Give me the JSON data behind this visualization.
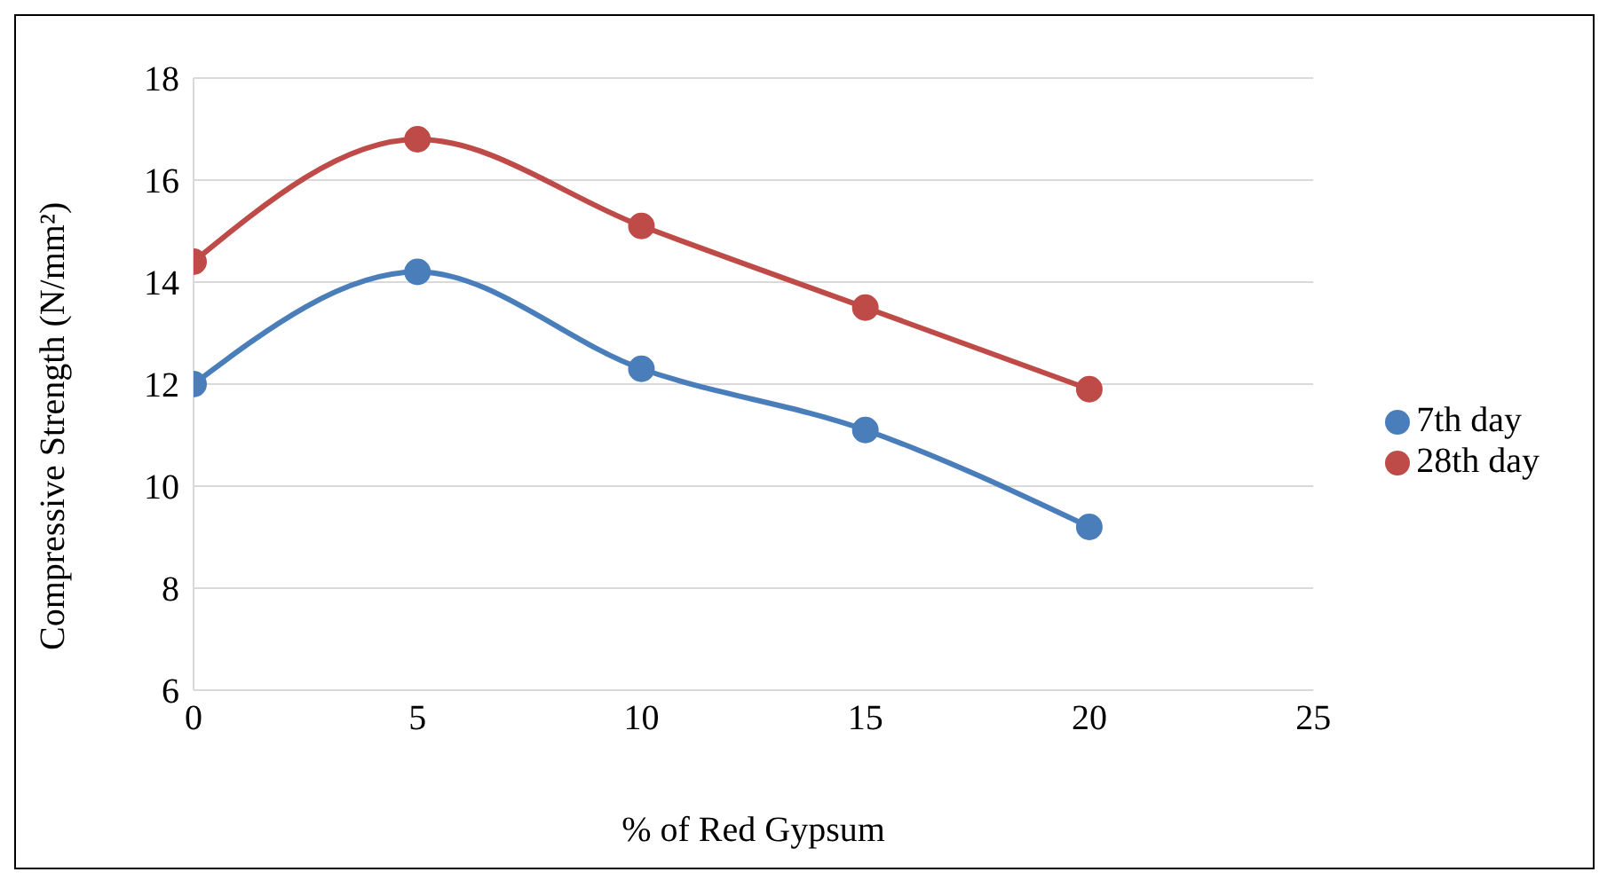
{
  "chart_data": {
    "type": "line",
    "xlabel": "% of Red Gypsum",
    "ylabel": "Compressive Strength (N/mm²)",
    "x": [
      0,
      5,
      10,
      15,
      20
    ],
    "series": [
      {
        "name": "7th day",
        "color": "#4a7ebb",
        "values": [
          12.0,
          14.2,
          12.3,
          11.1,
          9.2
        ]
      },
      {
        "name": "28th day",
        "color": "#be4b48",
        "values": [
          14.4,
          16.8,
          15.1,
          13.5,
          11.9
        ]
      }
    ],
    "xlim": [
      0,
      25
    ],
    "xticks": [
      0,
      5,
      10,
      15,
      20,
      25
    ],
    "ylim": [
      6,
      18
    ],
    "yticks": [
      6,
      8,
      10,
      12,
      14,
      16,
      18
    ],
    "grid": "y",
    "legend": "right",
    "marker": "circle",
    "line_style": "solid"
  }
}
